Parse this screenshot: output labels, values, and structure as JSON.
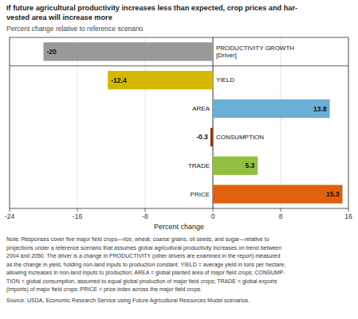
{
  "chart_data": {
    "type": "bar",
    "orientation": "horizontal",
    "title": "If future agricultural productivity increases less than expected, crop prices and har-\nvested area will increase more",
    "subtitle": "Percent change relative to reference scenario",
    "categories": [
      "PRODUCTIVITY GROWTH\n[Driver]",
      "YIELD",
      "AREA",
      "CONSUMPTION",
      "TRADE",
      "PRICE"
    ],
    "values": [
      -20,
      -12.4,
      13.8,
      -0.3,
      5.3,
      15.3
    ],
    "colors": [
      "#999999",
      "#d4b800",
      "#6baed6",
      "#8B3A0F",
      "#92c040",
      "#e06010"
    ],
    "data_labels": true,
    "xlim": [
      -24,
      16
    ],
    "xticks": [
      -24,
      -16,
      -8,
      0,
      8,
      16
    ],
    "xlabel": "Percent change",
    "grid": true,
    "annotations": [
      "Note: Responses cover five major field crops—rice, wheat, coarse grains, oil seeds, and sugar—relative to",
      "projections under a reference scenario that assumes global agricultural productivity increases on trend between",
      "2004 and 2050. The driver is a change in PRODUCTIVITY (other drivers are examined in the report) measured",
      "as the change in yield, holding non-land inputs to production constant. YIELD = average yield in tons per hectare,",
      "allowing increases in non-land inputs to production; AREA = global planted area of major field crops; CONSUMP-",
      "TION = global consumption, assumed to equal global production of major field crops; TRADE = global exports",
      "(imports) of major field crops; PRICE = price index across the major field crops.",
      "Source: USDA, Economic Research Service using Future Agricultural Resources Model scenarios."
    ]
  }
}
